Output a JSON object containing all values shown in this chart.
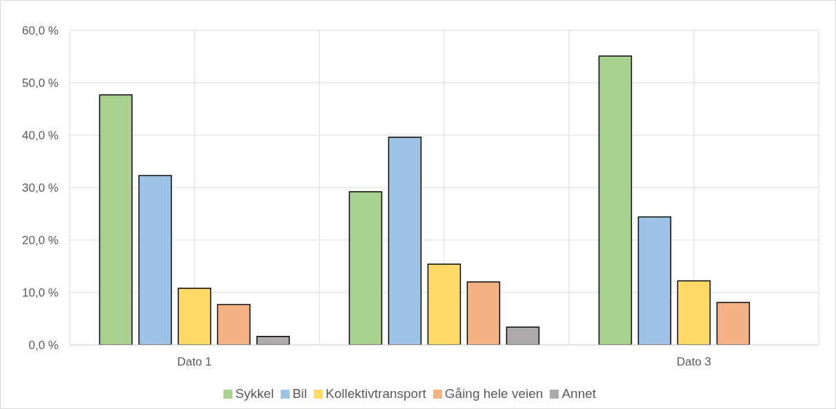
{
  "chart_data": {
    "type": "bar",
    "categories": [
      "Dato 1",
      null,
      "Dato 3"
    ],
    "series": [
      {
        "name": "Sykkel",
        "color": "#a9d18e",
        "values": [
          47.7,
          29.2,
          55.1
        ]
      },
      {
        "name": "Bil",
        "color": "#9dc3e6",
        "values": [
          32.3,
          39.6,
          24.4
        ]
      },
      {
        "name": "Kollektivtransport",
        "color": "#ffd966",
        "values": [
          10.8,
          15.4,
          12.2
        ]
      },
      {
        "name": "Gåing hele veien",
        "color": "#f4b183",
        "values": [
          7.7,
          12.0,
          8.1
        ]
      },
      {
        "name": "Annet",
        "color": "#aeaaaa",
        "values": [
          1.6,
          3.4,
          null
        ]
      }
    ],
    "ylim": [
      0,
      60
    ],
    "yticks": [
      {
        "value": 0,
        "label": "0,0 %"
      },
      {
        "value": 10,
        "label": "10,0 %"
      },
      {
        "value": 20,
        "label": "20,0 %"
      },
      {
        "value": 30,
        "label": "30,0 %"
      },
      {
        "value": 40,
        "label": "40,0 %"
      },
      {
        "value": 50,
        "label": "50,0 %"
      },
      {
        "value": 60,
        "label": "60,0 %"
      }
    ],
    "grid": true,
    "legend": "bottom"
  }
}
